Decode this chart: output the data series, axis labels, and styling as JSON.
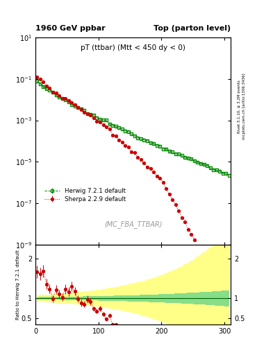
{
  "title_left": "1960 GeV ppbar",
  "title_right": "Top (parton level)",
  "plot_title": "pT (ttbar) (Mtt < 450 dy < 0)",
  "ylabel_ratio": "Ratio to Herwig 7.2.1 default",
  "watermark": "(MC_FBA_TTBAR)",
  "right_label1": "Rivet 3.1.10, ≥ 3.2M events",
  "right_label2": "mcplots.cern.ch [arXiv:1306.3436]",
  "legend": [
    "Herwig 7.2.1 default",
    "Sherpa 2.2.9 default"
  ],
  "herwig_color": "#008800",
  "sherpa_color": "#cc0000",
  "background_color": "#ffffff",
  "ylim_main": [
    1e-09,
    10.0
  ],
  "ylim_ratio": [
    0.33,
    2.35
  ],
  "xlim": [
    0,
    310
  ],
  "ratio_yticks": [
    0.5,
    1.0,
    2.0
  ],
  "ratio_yticklabels": [
    "0.5",
    "1",
    "2"
  ]
}
